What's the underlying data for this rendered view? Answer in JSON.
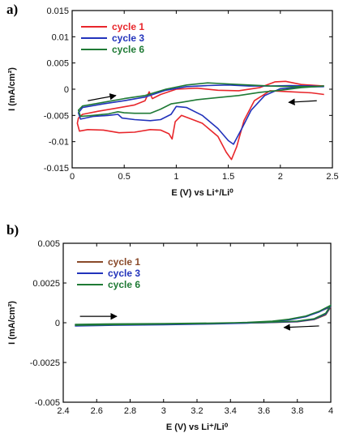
{
  "chart_data": [
    {
      "type": "line",
      "panel_label": "a)",
      "xlabel": "E (V) vs Li⁺/Li⁰",
      "ylabel": "I (mA/cm²)",
      "xlim": [
        0,
        2.5
      ],
      "ylim": [
        -0.015,
        0.015
      ],
      "xticks": [
        0,
        0.5,
        1,
        1.5,
        2,
        2.5
      ],
      "xtick_labels": [
        "0",
        "0.5",
        "1",
        "1.5",
        "2",
        "2.5"
      ],
      "yticks": [
        0.015,
        0.01,
        0.005,
        0,
        -0.005,
        -0.01,
        -0.015
      ],
      "ytick_labels": [
        "0.015",
        "0.01",
        "0.005",
        "0",
        "-0.005",
        "-0.01",
        "-0.015"
      ],
      "grid": false,
      "legend_position": "top-left",
      "series": [
        {
          "name": "cycle 1",
          "color": "#e8262b",
          "points": [
            [
              2.42,
              -0.001
            ],
            [
              2.3,
              -0.0007
            ],
            [
              2.1,
              -0.0005
            ],
            [
              1.9,
              -0.0003
            ],
            [
              1.75,
              -0.0022
            ],
            [
              1.65,
              -0.006
            ],
            [
              1.58,
              -0.011
            ],
            [
              1.53,
              -0.0134
            ],
            [
              1.48,
              -0.012
            ],
            [
              1.4,
              -0.009
            ],
            [
              1.25,
              -0.0065
            ],
            [
              1.12,
              -0.0055
            ],
            [
              1.05,
              -0.005
            ],
            [
              0.99,
              -0.0062
            ],
            [
              0.96,
              -0.0095
            ],
            [
              0.93,
              -0.0085
            ],
            [
              0.85,
              -0.0078
            ],
            [
              0.75,
              -0.0077
            ],
            [
              0.6,
              -0.0082
            ],
            [
              0.45,
              -0.0083
            ],
            [
              0.3,
              -0.0078
            ],
            [
              0.15,
              -0.0077
            ],
            [
              0.07,
              -0.008
            ],
            [
              0.05,
              -0.0065
            ],
            [
              0.06,
              -0.0055
            ],
            [
              0.1,
              -0.0048
            ],
            [
              0.25,
              -0.0042
            ],
            [
              0.4,
              -0.0037
            ],
            [
              0.6,
              -0.003
            ],
            [
              0.7,
              -0.0022
            ],
            [
              0.74,
              -0.0005
            ],
            [
              0.77,
              -0.0018
            ],
            [
              0.85,
              -0.001
            ],
            [
              1.0,
              0.0
            ],
            [
              1.2,
              0.0002
            ],
            [
              1.4,
              -0.0002
            ],
            [
              1.6,
              -0.0003
            ],
            [
              1.8,
              0.0003
            ],
            [
              1.95,
              0.0014
            ],
            [
              2.05,
              0.0015
            ],
            [
              2.2,
              0.0009
            ],
            [
              2.42,
              0.0006
            ]
          ]
        },
        {
          "name": "cycle 3",
          "color": "#2233bb",
          "points": [
            [
              2.42,
              0.0005
            ],
            [
              2.2,
              0.0004
            ],
            [
              2.0,
              0.0001
            ],
            [
              1.85,
              -0.0012
            ],
            [
              1.72,
              -0.004
            ],
            [
              1.63,
              -0.0075
            ],
            [
              1.55,
              -0.0105
            ],
            [
              1.5,
              -0.0098
            ],
            [
              1.4,
              -0.0075
            ],
            [
              1.25,
              -0.005
            ],
            [
              1.1,
              -0.0035
            ],
            [
              1.0,
              -0.0033
            ],
            [
              0.95,
              -0.0048
            ],
            [
              0.85,
              -0.0058
            ],
            [
              0.75,
              -0.006
            ],
            [
              0.6,
              -0.0058
            ],
            [
              0.48,
              -0.0055
            ],
            [
              0.44,
              -0.0048
            ],
            [
              0.35,
              -0.005
            ],
            [
              0.2,
              -0.0052
            ],
            [
              0.08,
              -0.0057
            ],
            [
              0.06,
              -0.0045
            ],
            [
              0.1,
              -0.0035
            ],
            [
              0.3,
              -0.0028
            ],
            [
              0.5,
              -0.0022
            ],
            [
              0.7,
              -0.0015
            ],
            [
              0.9,
              -0.0002
            ],
            [
              1.1,
              0.0005
            ],
            [
              1.3,
              0.0007
            ],
            [
              1.5,
              0.0008
            ],
            [
              1.7,
              0.0006
            ],
            [
              1.9,
              0.0006
            ],
            [
              2.1,
              0.0007
            ],
            [
              2.3,
              0.0006
            ],
            [
              2.42,
              0.0005
            ]
          ]
        },
        {
          "name": "cycle 6",
          "color": "#1f7a35",
          "points": [
            [
              2.42,
              0.0006
            ],
            [
              2.2,
              0.0003
            ],
            [
              2.0,
              -0.0002
            ],
            [
              1.8,
              -0.0006
            ],
            [
              1.6,
              -0.0012
            ],
            [
              1.4,
              -0.0016
            ],
            [
              1.2,
              -0.002
            ],
            [
              1.05,
              -0.0025
            ],
            [
              0.95,
              -0.0028
            ],
            [
              0.85,
              -0.0038
            ],
            [
              0.75,
              -0.0046
            ],
            [
              0.6,
              -0.0046
            ],
            [
              0.5,
              -0.0045
            ],
            [
              0.44,
              -0.0043
            ],
            [
              0.35,
              -0.0047
            ],
            [
              0.2,
              -0.005
            ],
            [
              0.08,
              -0.0052
            ],
            [
              0.06,
              -0.004
            ],
            [
              0.1,
              -0.0032
            ],
            [
              0.3,
              -0.0025
            ],
            [
              0.5,
              -0.0018
            ],
            [
              0.7,
              -0.0012
            ],
            [
              0.9,
              0.0
            ],
            [
              1.1,
              0.0008
            ],
            [
              1.3,
              0.0012
            ],
            [
              1.5,
              0.001
            ],
            [
              1.7,
              0.0008
            ],
            [
              1.9,
              0.0006
            ],
            [
              2.1,
              0.0005
            ],
            [
              2.3,
              0.0005
            ],
            [
              2.42,
              0.0006
            ]
          ]
        }
      ],
      "arrows": [
        {
          "from": [
            0.15,
            -0.0022
          ],
          "to": [
            0.42,
            -0.0012
          ]
        },
        {
          "from": [
            2.35,
            -0.0022
          ],
          "to": [
            2.08,
            -0.0025
          ]
        }
      ]
    },
    {
      "type": "line",
      "panel_label": "b)",
      "xlabel": "E (V) vs Li⁺/Li⁰",
      "ylabel": "I (mA/cm²)",
      "xlim": [
        2.4,
        4.0
      ],
      "ylim": [
        -0.005,
        0.005
      ],
      "xticks": [
        2.4,
        2.6,
        2.8,
        3,
        3.2,
        3.4,
        3.6,
        3.8,
        4
      ],
      "xtick_labels": [
        "2.4",
        "2.6",
        "2.8",
        "3",
        "3.2",
        "3.4",
        "3.6",
        "3.8",
        "4"
      ],
      "yticks": [
        0.005,
        0.0025,
        0,
        -0.0025,
        -0.005
      ],
      "ytick_labels": [
        "0.005",
        "0.0025",
        "0",
        "-0.0025",
        "-0.005"
      ],
      "grid": false,
      "legend_position": "top-left",
      "series": [
        {
          "name": "cycle 1",
          "color": "#8a4a2a",
          "points": [
            [
              2.47,
              -0.00018
            ],
            [
              2.7,
              -0.00014
            ],
            [
              3.0,
              -0.0001
            ],
            [
              3.3,
              -6e-05
            ],
            [
              3.5,
              0.0
            ],
            [
              3.65,
              8e-05
            ],
            [
              3.75,
              0.0002
            ],
            [
              3.85,
              0.0004
            ],
            [
              3.93,
              0.0007
            ],
            [
              4.0,
              0.001
            ],
            [
              3.97,
              0.0005
            ],
            [
              3.9,
              0.0002
            ],
            [
              3.8,
              6e-05
            ],
            [
              3.6,
              0.0
            ],
            [
              3.3,
              -5e-05
            ],
            [
              3.0,
              -8e-05
            ],
            [
              2.7,
              -0.0001
            ],
            [
              2.47,
              -0.00015
            ]
          ]
        },
        {
          "name": "cycle 3",
          "color": "#2233bb",
          "points": [
            [
              2.47,
              -0.0002
            ],
            [
              2.7,
              -0.00016
            ],
            [
              3.0,
              -0.00012
            ],
            [
              3.3,
              -7e-05
            ],
            [
              3.5,
              -2e-05
            ],
            [
              3.65,
              6e-05
            ],
            [
              3.75,
              0.00018
            ],
            [
              3.85,
              0.00038
            ],
            [
              3.93,
              0.00068
            ],
            [
              4.0,
              0.00105
            ],
            [
              3.97,
              0.00055
            ],
            [
              3.9,
              0.00022
            ],
            [
              3.8,
              8e-05
            ],
            [
              3.6,
              1e-05
            ],
            [
              3.3,
              -4e-05
            ],
            [
              3.0,
              -7e-05
            ],
            [
              2.7,
              -9e-05
            ],
            [
              2.47,
              -0.00013
            ]
          ]
        },
        {
          "name": "cycle 6",
          "color": "#1f7a35",
          "points": [
            [
              2.47,
              -0.00016
            ],
            [
              2.7,
              -0.00012
            ],
            [
              3.0,
              -8e-05
            ],
            [
              3.3,
              -4e-05
            ],
            [
              3.5,
              2e-05
            ],
            [
              3.65,
              0.0001
            ],
            [
              3.75,
              0.00022
            ],
            [
              3.85,
              0.00042
            ],
            [
              3.93,
              0.00072
            ],
            [
              4.0,
              0.0011
            ],
            [
              3.97,
              0.0006
            ],
            [
              3.9,
              0.00025
            ],
            [
              3.8,
              0.0001
            ],
            [
              3.6,
              3e-05
            ],
            [
              3.3,
              -2e-05
            ],
            [
              3.0,
              -5e-05
            ],
            [
              2.7,
              -7e-05
            ],
            [
              2.47,
              -0.0001
            ]
          ]
        }
      ],
      "arrows": [
        {
          "from": [
            2.5,
            0.0004
          ],
          "to": [
            2.72,
            0.0004
          ]
        },
        {
          "from": [
            3.93,
            -0.0002
          ],
          "to": [
            3.72,
            -0.0003
          ]
        }
      ]
    }
  ]
}
